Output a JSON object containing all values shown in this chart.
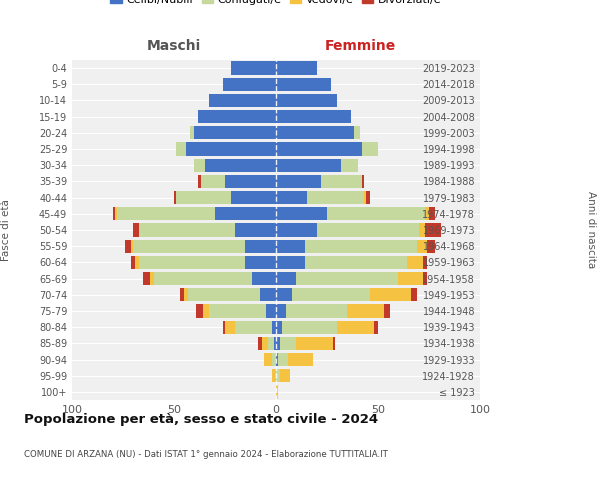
{
  "age_groups": [
    "100+",
    "95-99",
    "90-94",
    "85-89",
    "80-84",
    "75-79",
    "70-74",
    "65-69",
    "60-64",
    "55-59",
    "50-54",
    "45-49",
    "40-44",
    "35-39",
    "30-34",
    "25-29",
    "20-24",
    "15-19",
    "10-14",
    "5-9",
    "0-4"
  ],
  "birth_years": [
    "≤ 1923",
    "1924-1928",
    "1929-1933",
    "1934-1938",
    "1939-1943",
    "1944-1948",
    "1949-1953",
    "1954-1958",
    "1959-1963",
    "1964-1968",
    "1969-1973",
    "1974-1978",
    "1979-1983",
    "1984-1988",
    "1989-1993",
    "1994-1998",
    "1999-2003",
    "2004-2008",
    "2009-2013",
    "2014-2018",
    "2019-2023"
  ],
  "colors": {
    "celibe": "#4472c4",
    "coniugato": "#c5d89d",
    "vedovo": "#f5c242",
    "divorziato": "#c0392b"
  },
  "maschi_celibe": [
    0,
    0,
    0,
    1,
    2,
    5,
    8,
    12,
    15,
    15,
    20,
    30,
    22,
    25,
    35,
    44,
    40,
    38,
    33,
    26,
    22
  ],
  "maschi_coniugato": [
    0,
    0,
    2,
    3,
    18,
    28,
    35,
    48,
    52,
    55,
    47,
    48,
    27,
    12,
    5,
    5,
    2,
    0,
    0,
    0,
    0
  ],
  "maschi_vedovo": [
    0,
    2,
    4,
    3,
    5,
    3,
    2,
    2,
    2,
    1,
    0,
    1,
    0,
    0,
    0,
    0,
    0,
    0,
    0,
    0,
    0
  ],
  "maschi_divorziato": [
    0,
    0,
    0,
    2,
    1,
    3,
    2,
    3,
    2,
    3,
    3,
    1,
    1,
    1,
    0,
    0,
    0,
    0,
    0,
    0,
    0
  ],
  "femmine_nubile": [
    0,
    0,
    1,
    2,
    3,
    5,
    8,
    10,
    14,
    14,
    20,
    25,
    15,
    22,
    32,
    42,
    38,
    37,
    30,
    27,
    20
  ],
  "femmine_coniugata": [
    0,
    2,
    5,
    8,
    27,
    30,
    38,
    50,
    50,
    55,
    50,
    48,
    28,
    20,
    8,
    8,
    3,
    0,
    0,
    0,
    0
  ],
  "femmine_vedova": [
    1,
    5,
    12,
    18,
    18,
    18,
    20,
    12,
    8,
    5,
    3,
    2,
    1,
    0,
    0,
    0,
    0,
    0,
    0,
    0,
    0
  ],
  "femmine_divorziata": [
    0,
    0,
    0,
    1,
    2,
    3,
    3,
    2,
    2,
    4,
    8,
    3,
    2,
    1,
    0,
    0,
    0,
    0,
    0,
    0,
    0
  ],
  "title": "Popolazione per età, sesso e stato civile - 2024",
  "subtitle": "COMUNE DI ARZANA (NU) - Dati ISTAT 1° gennaio 2024 - Elaborazione TUTTITALIA.IT",
  "xlabel_left": "Maschi",
  "xlabel_right": "Femmine",
  "ylabel_left": "Fasce di età",
  "ylabel_right": "Anni di nascita",
  "xlim": 100,
  "legend_labels": [
    "Celibi/Nubili",
    "Coniugati/e",
    "Vedovi/e",
    "Divorziati/e"
  ],
  "background_color": "#ffffff",
  "ax_bg": "#f0f0f0"
}
